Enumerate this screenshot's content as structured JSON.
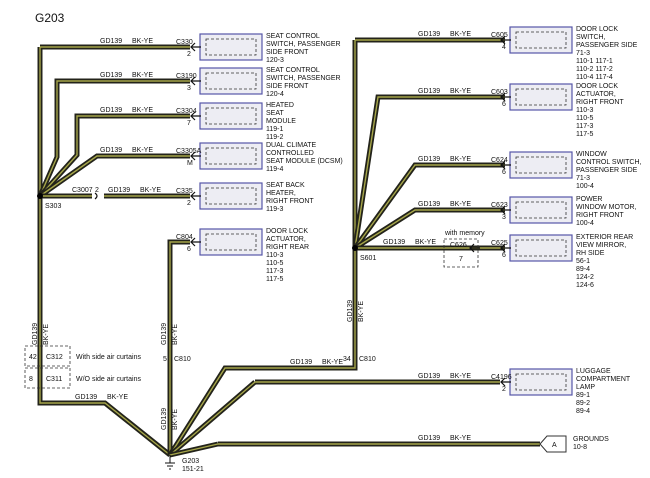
{
  "title": "G203",
  "wire": {
    "circuit": "GD139",
    "color": "BK-YE"
  },
  "splices": {
    "left": "S303",
    "right": "S601"
  },
  "ground": {
    "name": "G203",
    "ref": "151-21"
  },
  "inline_connector": {
    "name": "C3007",
    "pin": "2"
  },
  "left_components": [
    {
      "connector": "C330",
      "pin": "2",
      "lines": [
        "SEAT CONTROL",
        "SWITCH, PASSENGER",
        "SIDE FRONT",
        "120-3"
      ]
    },
    {
      "connector": "C3190",
      "pin": "3",
      "lines": [
        "SEAT CONTROL",
        "SWITCH, PASSENGER",
        "SIDE FRONT",
        "120-4"
      ]
    },
    {
      "connector": "C3304",
      "pin": "7",
      "lines": [
        "HEATED",
        "SEAT",
        "MODULE",
        "119-1",
        "119-2"
      ]
    },
    {
      "connector": "C3305A",
      "pin": "M",
      "lines": [
        "DUAL CLIMATE",
        "CONTROLLED",
        "SEAT MODULE (DCSM)",
        "119-4"
      ]
    },
    {
      "connector": "C335",
      "pin": "2",
      "lines": [
        "SEAT BACK",
        "HEATER,",
        "RIGHT FRONT",
        "119-3"
      ]
    },
    {
      "connector": "C804",
      "pin": "6",
      "lines": [
        "DOOR LOCK",
        "ACTUATOR,",
        "RIGHT REAR",
        "110-3",
        "110-5",
        "117-3",
        "117-5"
      ]
    }
  ],
  "right_components": [
    {
      "connector": "C605",
      "pin": "4",
      "lines": [
        "DOOR LOCK",
        "SWITCH,",
        "PASSENGER SIDE",
        "71-3",
        "110-1     117-1",
        "110-2     117-2",
        "110-4     117-4"
      ]
    },
    {
      "connector": "C603",
      "pin": "6",
      "lines": [
        "DOOR LOCK",
        "ACTUATOR,",
        "RIGHT FRONT",
        "110-3",
        "110-5",
        "117-3",
        "117-5"
      ]
    },
    {
      "connector": "C624",
      "pin": "6",
      "lines": [
        "WINDOW",
        "CONTROL SWITCH,",
        "PASSENGER SIDE",
        "71-3",
        "100-4"
      ]
    },
    {
      "connector": "C623",
      "pin": "3",
      "lines": [
        "POWER",
        "WINDOW MOTOR,",
        "RIGHT FRONT",
        "100-4"
      ]
    },
    {
      "connector": "C625",
      "pin": "6",
      "lines": [
        "EXTERIOR REAR",
        "VIEW MIRROR,",
        "RH SIDE",
        "56-1",
        "89-4",
        "124-2",
        "124-6"
      ]
    },
    {
      "connector": "C4196",
      "pin": "2",
      "lines": [
        "LUGGAGE",
        "COMPARTMENT",
        "LAMP",
        "89-1",
        "89-2",
        "89-4"
      ]
    }
  ],
  "memory_option": {
    "label": "with memory",
    "connector": "C626",
    "pin": "7"
  },
  "c810": {
    "connector": "C810",
    "pin_left": "5",
    "pin_right": "34"
  },
  "curtain_options": [
    {
      "connector": "C312",
      "pin": "42",
      "label": "With side air curtains"
    },
    {
      "connector": "C311",
      "pin": "8",
      "label": "W/O side air curtains"
    }
  ],
  "grounds_ref": {
    "tag": "A",
    "lines": [
      "GROUNDS",
      "10-8"
    ]
  }
}
